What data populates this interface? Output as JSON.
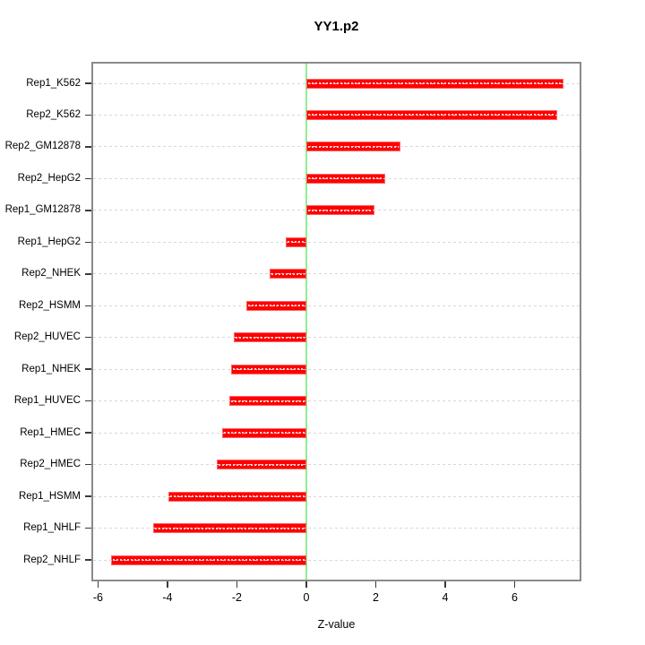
{
  "title": "YY1.p2",
  "xlabel": "Z-value",
  "chart_data": {
    "type": "bar",
    "orientation": "horizontal",
    "title": "YY1.p2",
    "xlabel": "Z-value",
    "ylabel": "",
    "categories": [
      "Rep1_K562",
      "Rep2_K562",
      "Rep2_GM12878",
      "Rep2_HepG2",
      "Rep1_GM12878",
      "Rep1_HepG2",
      "Rep2_NHEK",
      "Rep2_HSMM",
      "Rep2_HUVEC",
      "Rep1_NHEK",
      "Rep1_HUVEC",
      "Rep1_HMEC",
      "Rep2_HMEC",
      "Rep1_HSMM",
      "Rep1_NHLF",
      "Rep2_NHLF"
    ],
    "values": [
      7.4,
      7.23,
      2.71,
      2.28,
      1.97,
      -0.6,
      -1.07,
      -1.74,
      -2.08,
      -2.17,
      -2.22,
      -2.42,
      -2.57,
      -3.98,
      -4.4,
      -5.63
    ],
    "xlim": [
      -6.14,
      7.87
    ],
    "xticks": [
      -6,
      -4,
      -2,
      0,
      2,
      4,
      6
    ],
    "xtick_labels": [
      "-6",
      "-4",
      "-2",
      "0",
      "2",
      "4",
      "6"
    ],
    "zero_line_at": 0,
    "grid": true,
    "legend": false,
    "bar_color": "#fe0000",
    "bar_dash_color": "#ffffff",
    "zero_line_color": "#90ee90",
    "grid_color": "#d8d8d8",
    "box_color": "#8a8a8a"
  }
}
